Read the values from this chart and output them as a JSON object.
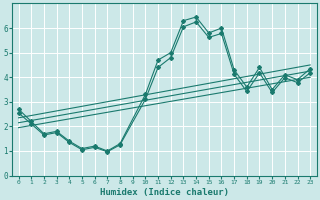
{
  "xlabel": "Humidex (Indice chaleur)",
  "bg_color": "#cce8e8",
  "grid_color": "#ffffff",
  "line_color": "#1a7a6e",
  "xlim": [
    -0.5,
    23.5
  ],
  "ylim": [
    0,
    7
  ],
  "yticks": [
    0,
    1,
    2,
    3,
    4,
    5,
    6
  ],
  "xticks": [
    0,
    1,
    2,
    3,
    4,
    5,
    6,
    7,
    8,
    9,
    10,
    11,
    12,
    13,
    14,
    15,
    16,
    17,
    18,
    19,
    20,
    21,
    22,
    23
  ],
  "line1_x": [
    0,
    1,
    2,
    3,
    4,
    5,
    6,
    7,
    8,
    10,
    11,
    12,
    13,
    14,
    15,
    16,
    17,
    18,
    19,
    20,
    21,
    22,
    23
  ],
  "line1_y": [
    2.7,
    2.2,
    1.7,
    1.8,
    1.4,
    1.1,
    1.2,
    1.0,
    1.3,
    3.3,
    4.7,
    5.0,
    6.3,
    6.45,
    5.8,
    6.0,
    4.3,
    3.6,
    4.4,
    3.5,
    4.1,
    3.9,
    4.35
  ],
  "line2_x": [
    0,
    1,
    2,
    3,
    4,
    5,
    6,
    7,
    8,
    10,
    11,
    12,
    13,
    14,
    15,
    16,
    17,
    18,
    19,
    20,
    21,
    22,
    23
  ],
  "line2_y": [
    2.55,
    2.1,
    1.65,
    1.75,
    1.35,
    1.05,
    1.15,
    0.97,
    1.25,
    3.1,
    4.4,
    4.8,
    6.05,
    6.25,
    5.62,
    5.78,
    4.12,
    3.42,
    4.18,
    3.38,
    3.98,
    3.78,
    4.18
  ],
  "line3_x": [
    0,
    23
  ],
  "line3_y": [
    2.35,
    4.5
  ],
  "line4_x": [
    0,
    23
  ],
  "line4_y": [
    2.15,
    4.25
  ],
  "line5_x": [
    0,
    23
  ],
  "line5_y": [
    1.95,
    4.0
  ]
}
